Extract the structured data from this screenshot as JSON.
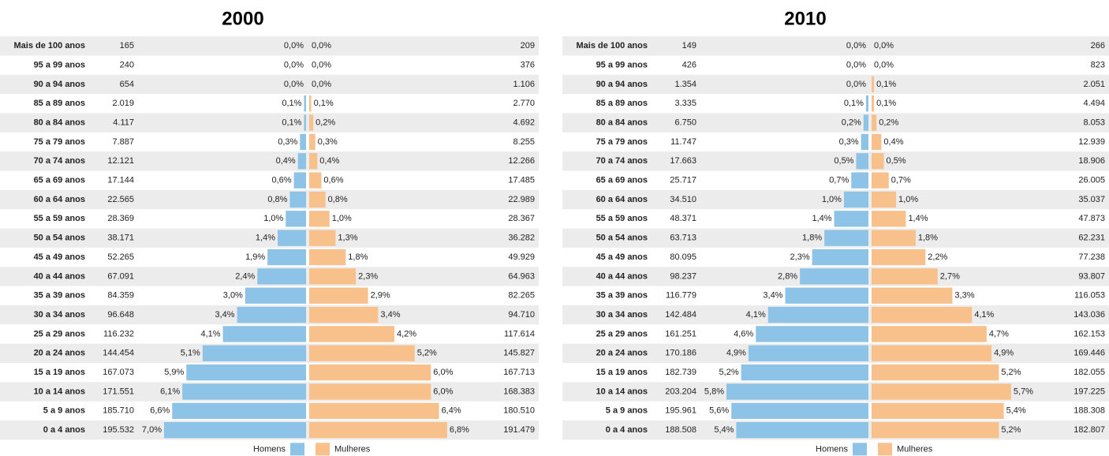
{
  "chart_data": [
    {
      "type": "pyramid",
      "title": "2000",
      "categories": [
        "Mais de 100 anos",
        "95 a 99 anos",
        "90 a 94 anos",
        "85 a 89 anos",
        "80 a 84 anos",
        "75 a 79 anos",
        "70 a 74 anos",
        "65 a 69 anos",
        "60 a 64 anos",
        "55 a 59 anos",
        "50 a 54 anos",
        "45 a 49 anos",
        "40 a 44 anos",
        "35 a 39 anos",
        "30 a 34 anos",
        "25 a 29 anos",
        "20 a 24 anos",
        "15 a 19 anos",
        "10 a 14 anos",
        "5 a 9 anos",
        "0 a 4 anos"
      ],
      "series": [
        {
          "name": "Homens",
          "color": "#8ec3e8",
          "values": [
            0,
            0,
            0,
            0.1,
            0.1,
            0.3,
            0.4,
            0.6,
            0.8,
            1.0,
            1.4,
            1.9,
            2.4,
            3.0,
            3.4,
            4.1,
            5.1,
            5.9,
            6.1,
            6.6,
            7.0
          ],
          "value_labels": [
            "0,0%",
            "0,0%",
            "0,0%",
            "0,1%",
            "0,1%",
            "0,3%",
            "0,4%",
            "0,6%",
            "0,8%",
            "1,0%",
            "1,4%",
            "1,9%",
            "2,4%",
            "3,0%",
            "3,4%",
            "4,1%",
            "5,1%",
            "5,9%",
            "6,1%",
            "6,6%",
            "7,0%"
          ],
          "counts": [
            "165",
            "240",
            "654",
            "2.019",
            "4.117",
            "7.887",
            "12.121",
            "17.144",
            "22.565",
            "28.369",
            "38.171",
            "52.265",
            "67.091",
            "84.359",
            "96.648",
            "116.232",
            "144.454",
            "167.073",
            "171.551",
            "185.710",
            "195.532"
          ]
        },
        {
          "name": "Mulheres",
          "color": "#f8c08b",
          "values": [
            0,
            0,
            0,
            0.1,
            0.2,
            0.3,
            0.4,
            0.6,
            0.8,
            1.0,
            1.3,
            1.8,
            2.3,
            2.9,
            3.4,
            4.2,
            5.2,
            6.0,
            6.0,
            6.4,
            6.8
          ],
          "value_labels": [
            "0,0%",
            "0,0%",
            "0,0%",
            "0,1%",
            "0,2%",
            "0,3%",
            "0,4%",
            "0,6%",
            "0,8%",
            "1,0%",
            "1,3%",
            "1,8%",
            "2,3%",
            "2,9%",
            "3,4%",
            "4,2%",
            "5,2%",
            "6,0%",
            "6,0%",
            "6,4%",
            "6,8%"
          ],
          "counts": [
            "209",
            "376",
            "1.106",
            "2.770",
            "4.692",
            "8.255",
            "12.266",
            "17.485",
            "22.989",
            "28.367",
            "36.282",
            "49.929",
            "64.963",
            "82.265",
            "94.710",
            "117.614",
            "145.827",
            "167.713",
            "168.383",
            "180.510",
            "191.479"
          ]
        }
      ]
    },
    {
      "type": "pyramid",
      "title": "2010",
      "categories": [
        "Mais de 100 anos",
        "95 a 99 anos",
        "90 a 94 anos",
        "85 a 89 anos",
        "80 a 84 anos",
        "75 a 79 anos",
        "70 a 74 anos",
        "65 a 69 anos",
        "60 a 64 anos",
        "55 a 59 anos",
        "50 a 54 anos",
        "45 a 49 anos",
        "40 a 44 anos",
        "35 a 39 anos",
        "30 a 34 anos",
        "25 a 29 anos",
        "20 a 24 anos",
        "15 a 19 anos",
        "10 a 14 anos",
        "5 a 9 anos",
        "0 a 4 anos"
      ],
      "series": [
        {
          "name": "Homens",
          "color": "#8ec3e8",
          "values": [
            0,
            0,
            0,
            0.1,
            0.2,
            0.3,
            0.5,
            0.7,
            1.0,
            1.4,
            1.8,
            2.3,
            2.8,
            3.4,
            4.1,
            4.6,
            4.9,
            5.2,
            5.8,
            5.6,
            5.4
          ],
          "value_labels": [
            "0,0%",
            "0,0%",
            "0,0%",
            "0,1%",
            "0,2%",
            "0,3%",
            "0,5%",
            "0,7%",
            "1,0%",
            "1,4%",
            "1,8%",
            "2,3%",
            "2,8%",
            "3,4%",
            "4,1%",
            "4,6%",
            "4,9%",
            "5,2%",
            "5,8%",
            "5,6%",
            "5,4%"
          ],
          "counts": [
            "149",
            "426",
            "1.354",
            "3.335",
            "6.750",
            "11.747",
            "17.663",
            "25.717",
            "34.510",
            "48.371",
            "63.713",
            "80.095",
            "98.237",
            "116.779",
            "142.484",
            "161.251",
            "170.186",
            "182.739",
            "203.204",
            "195.961",
            "188.508"
          ]
        },
        {
          "name": "Mulheres",
          "color": "#f8c08b",
          "values": [
            0,
            0,
            0.1,
            0.1,
            0.2,
            0.4,
            0.5,
            0.7,
            1.0,
            1.4,
            1.8,
            2.2,
            2.7,
            3.3,
            4.1,
            4.7,
            4.9,
            5.2,
            5.7,
            5.4,
            5.2
          ],
          "value_labels": [
            "0,0%",
            "0,0%",
            "0,1%",
            "0,1%",
            "0,2%",
            "0,4%",
            "0,5%",
            "0,7%",
            "1,0%",
            "1,4%",
            "1,8%",
            "2,2%",
            "2,7%",
            "3,3%",
            "4,1%",
            "4,7%",
            "4,9%",
            "5,2%",
            "5,7%",
            "5,4%",
            "5,2%"
          ],
          "counts": [
            "266",
            "823",
            "2.051",
            "4.494",
            "8.053",
            "12.939",
            "18.906",
            "26.005",
            "35.037",
            "47.873",
            "62.231",
            "77.238",
            "93.807",
            "116.053",
            "143.036",
            "162.153",
            "169.446",
            "182.055",
            "197.225",
            "188.308",
            "182.807"
          ]
        }
      ]
    }
  ]
}
